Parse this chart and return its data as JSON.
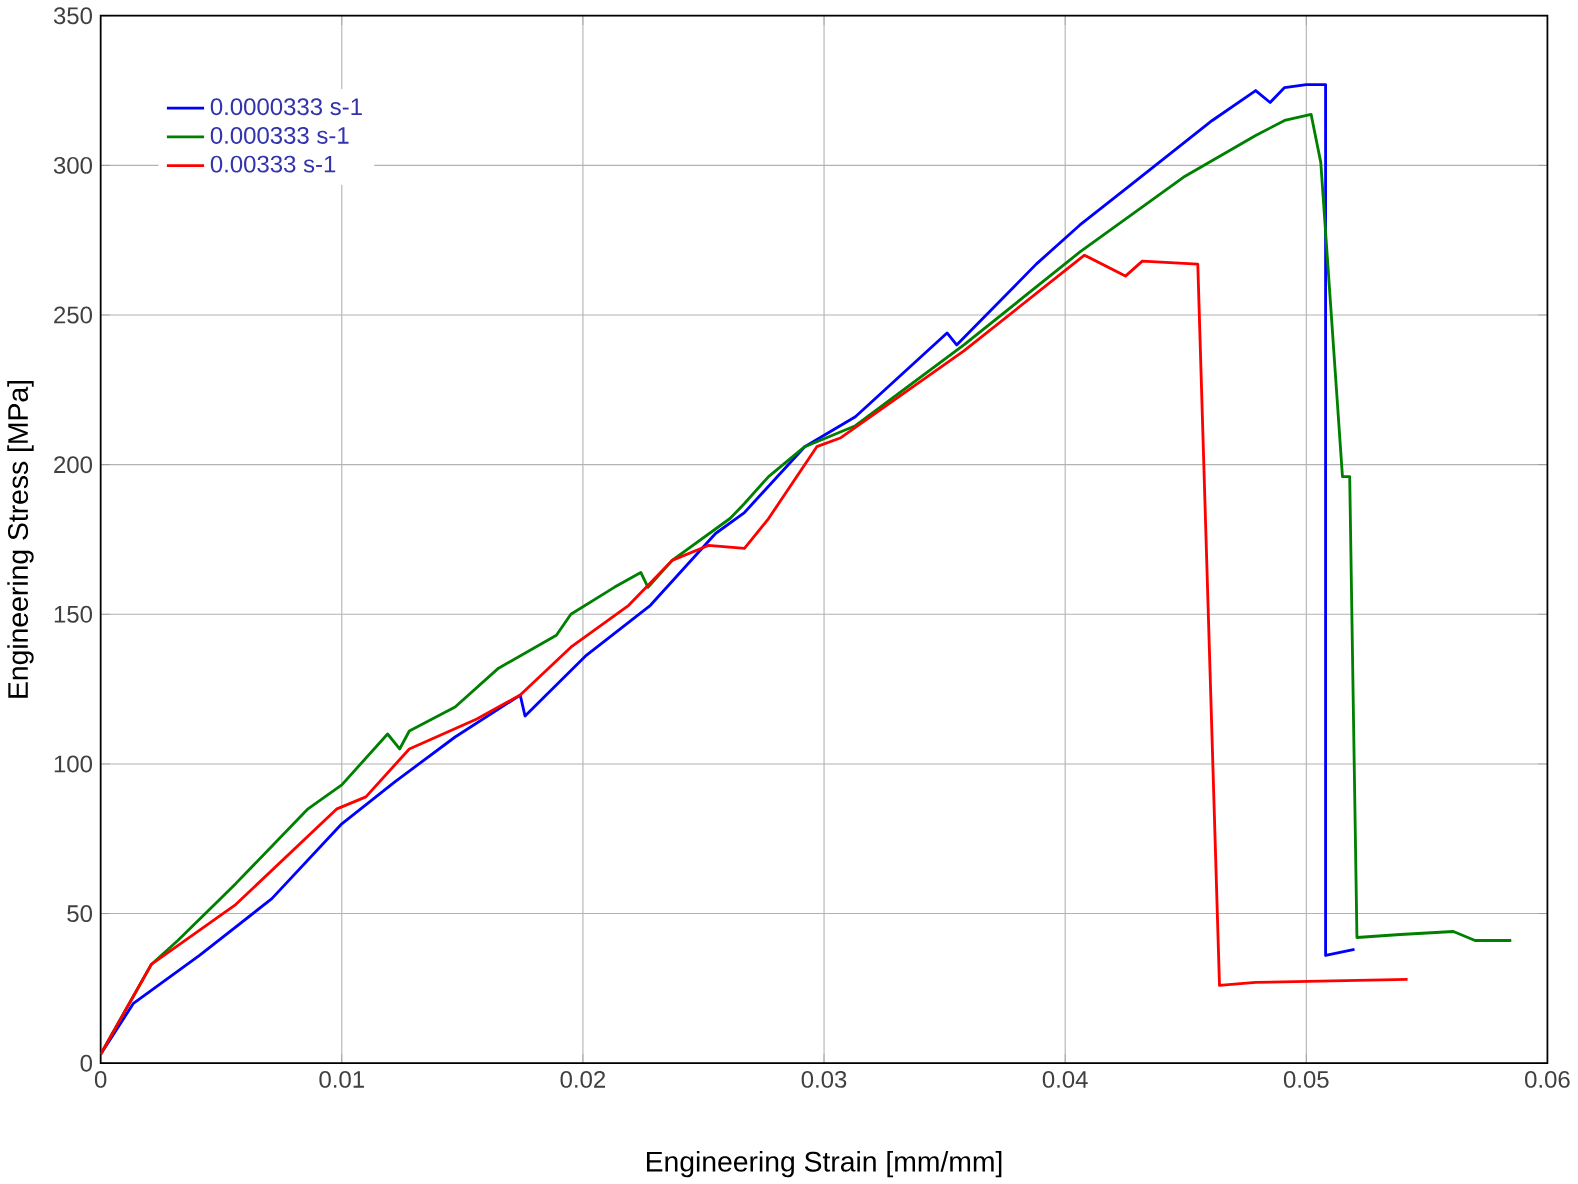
{
  "chart_data": {
    "type": "line",
    "xlabel": "Engineering Strain [mm/mm]",
    "ylabel": "Engineering Stress [MPa]",
    "xlim": [
      0,
      0.06
    ],
    "ylim": [
      0,
      350
    ],
    "xticks": [
      0,
      0.01,
      0.02,
      0.03,
      0.04,
      0.05,
      0.06
    ],
    "yticks": [
      0,
      50,
      100,
      150,
      200,
      250,
      300,
      350
    ],
    "grid": true,
    "legend": "top left",
    "marker": "none",
    "line_style": "solid",
    "series": [
      {
        "name": "0.0000333 s-1",
        "color": "#0000ff",
        "x": [
          0,
          0.00136,
          0.0041,
          0.0071,
          0.01,
          0.0122,
          0.0147,
          0.0174,
          0.0176,
          0.0201,
          0.0228,
          0.0255,
          0.0267,
          0.0292,
          0.0313,
          0.0351,
          0.0355,
          0.0388,
          0.0406,
          0.0428,
          0.0461,
          0.0479,
          0.0485,
          0.0491,
          0.05,
          0.0508,
          0.0508,
          0.052
        ],
        "values": [
          3,
          20,
          36,
          55,
          80,
          94,
          109,
          123,
          116,
          136,
          153,
          177,
          184,
          206,
          216,
          244,
          240,
          267,
          280,
          294,
          315,
          325,
          321,
          326,
          327,
          327,
          36,
          38
        ]
      },
      {
        "name": "0.000333 s-1",
        "color": "#008000",
        "x": [
          0,
          0.0021,
          0.0032,
          0.0056,
          0.0086,
          0.01,
          0.0119,
          0.0124,
          0.0128,
          0.0147,
          0.0165,
          0.0189,
          0.0195,
          0.0213,
          0.0224,
          0.0227,
          0.0237,
          0.0261,
          0.0267,
          0.0277,
          0.0292,
          0.0313,
          0.0358,
          0.0406,
          0.0449,
          0.0479,
          0.0491,
          0.0502,
          0.0506,
          0.0515,
          0.0518,
          0.0521,
          0.0539,
          0.0561,
          0.057,
          0.0585
        ],
        "values": [
          3,
          33,
          41,
          60,
          85,
          93,
          110,
          105,
          111,
          119,
          132,
          143,
          150,
          159,
          164,
          159,
          168,
          182,
          187,
          196,
          206,
          213,
          240,
          271,
          296,
          310,
          315,
          317,
          301,
          196,
          196,
          42,
          43,
          44,
          41,
          41
        ]
      },
      {
        "name": "0.00333 s-1",
        "color": "#ff0000",
        "x": [
          0,
          0.0021,
          0.0056,
          0.0098,
          0.011,
          0.0128,
          0.0156,
          0.0174,
          0.0195,
          0.0219,
          0.0237,
          0.0252,
          0.0267,
          0.0277,
          0.0297,
          0.0307,
          0.0358,
          0.0408,
          0.0425,
          0.0432,
          0.0455,
          0.0464,
          0.0479,
          0.0542
        ],
        "values": [
          3,
          33,
          53,
          85,
          89,
          105,
          115,
          123,
          139,
          153,
          168,
          173,
          172,
          182,
          206,
          209,
          238,
          270,
          263,
          268,
          267,
          26,
          27,
          28
        ]
      }
    ]
  }
}
